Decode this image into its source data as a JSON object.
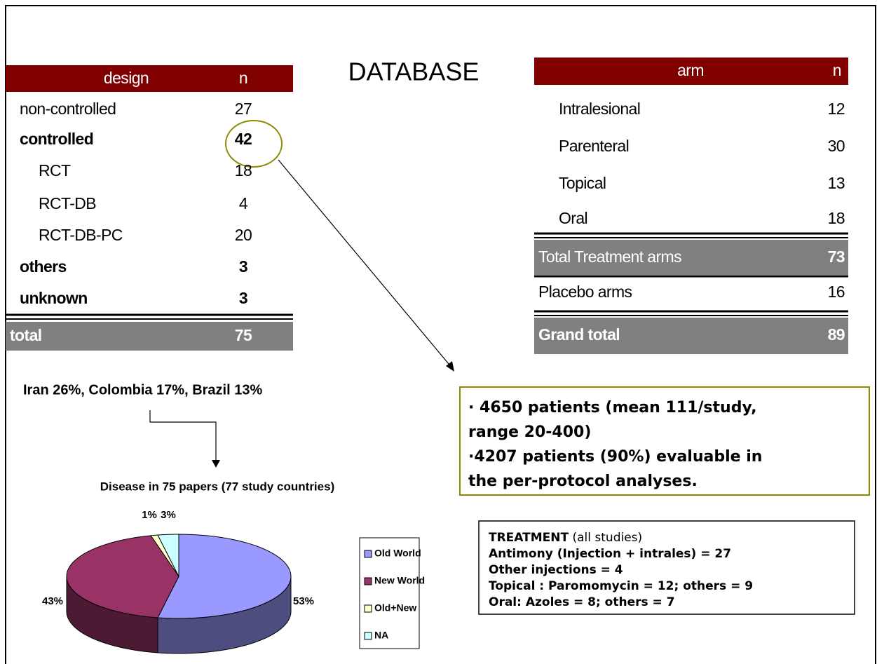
{
  "title": "DATABASE",
  "left_table": {
    "header": [
      "design",
      "n"
    ],
    "rows": [
      [
        "non-controlled",
        "27"
      ],
      [
        "controlled",
        "42"
      ],
      [
        "RCT",
        "18"
      ],
      [
        "RCT-DB",
        "4"
      ],
      [
        "RCT-DB-PC",
        "20"
      ],
      [
        "others",
        "3"
      ],
      [
        "unknown",
        "3"
      ]
    ],
    "total": [
      "total",
      "75"
    ]
  },
  "right_table": {
    "header": [
      "arm",
      "n"
    ],
    "rows": [
      [
        "Intralesional",
        "12"
      ],
      [
        "Parenteral",
        "30"
      ],
      [
        "Topical",
        "13"
      ],
      [
        "Oral",
        "18"
      ]
    ],
    "total_treatment": [
      "Total Treatment arms",
      "73"
    ],
    "placebo": [
      "Placebo arms",
      "16"
    ],
    "grand_total": [
      "Grand total",
      "89"
    ]
  },
  "countries": "Iran 26%, Colombia 17%,  Brazil 13%",
  "patients": [
    "· 4650 patients (mean 111/study,",
    "range 20-400)",
    "·4207 patients (90%) evaluable in",
    "the per-protocol analyses."
  ],
  "treatment": {
    "heading": "TREATMENT",
    "heading_note": "(all studies)",
    "lines": [
      "Antimony (Injection + intrales) = 27",
      "Other injections = 4",
      "Topical : Paromomycin = 12; others = 9",
      "Oral: Azoles = 8;  others = 7"
    ]
  },
  "chart_data": {
    "type": "pie",
    "title": "Disease in 75 papers (77 study countries)",
    "categories": [
      "Old World",
      "New World",
      "Old+New",
      "NA"
    ],
    "values": [
      53,
      43,
      1,
      3
    ],
    "value_labels": [
      "53%",
      "43%",
      "1%",
      "3%"
    ],
    "colors": [
      "#9999ff",
      "#993366",
      "#ffffcc",
      "#ccffff"
    ],
    "legend": "right"
  }
}
